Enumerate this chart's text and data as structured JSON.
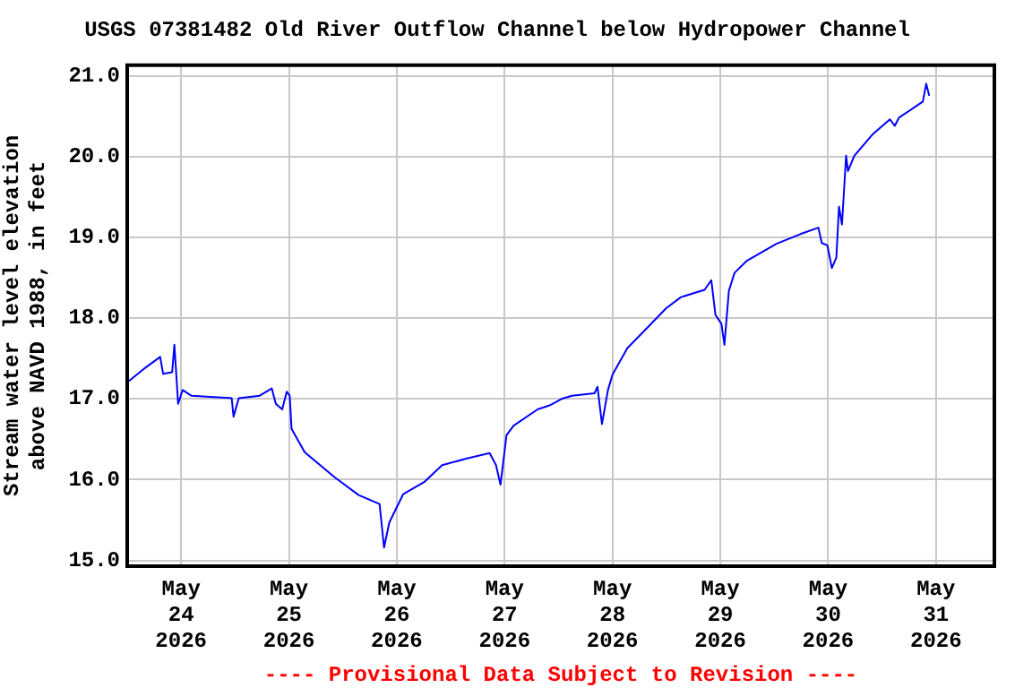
{
  "chart_data": {
    "type": "line",
    "title": "USGS 07381482 Old River Outflow Channel below Hydropower Channel",
    "ylabel": "Stream water level elevation above NAVD 1988, in feet",
    "annotations": [
      "---- Provisional Data Subject to Revision ----"
    ],
    "x": [
      "2026-05-23T12:20",
      "2026-05-23T15:40",
      "2026-05-23T19:20",
      "2026-05-23T20:00",
      "2026-05-23T22:00",
      "2026-05-23T22:30",
      "2026-05-23T23:20",
      "2026-05-24T00:20",
      "2026-05-24T02:15",
      "2026-05-24T11:15",
      "2026-05-24T11:40",
      "2026-05-24T12:50",
      "2026-05-24T17:30",
      "2026-05-24T20:10",
      "2026-05-24T21:05",
      "2026-05-24T22:30",
      "2026-05-24T23:30",
      "2026-05-25T00:10",
      "2026-05-25T00:35",
      "2026-05-25T03:30",
      "2026-05-25T10:10",
      "2026-05-25T15:30",
      "2026-05-25T20:10",
      "2026-05-25T21:10",
      "2026-05-25T22:20",
      "2026-05-26T01:25",
      "2026-05-26T06:05",
      "2026-05-26T10:05",
      "2026-05-26T15:25",
      "2026-05-26T20:40",
      "2026-05-26T22:05",
      "2026-05-26T23:05",
      "2026-05-27T00:25",
      "2026-05-27T02:00",
      "2026-05-27T07:20",
      "2026-05-27T10:00",
      "2026-05-27T12:40",
      "2026-05-27T15:00",
      "2026-05-27T20:00",
      "2026-05-27T20:40",
      "2026-05-27T21:40",
      "2026-05-27T23:00",
      "2026-05-28T00:00",
      "2026-05-28T03:20",
      "2026-05-28T07:55",
      "2026-05-28T11:55",
      "2026-05-28T15:15",
      "2026-05-28T20:30",
      "2026-05-28T22:00",
      "2026-05-28T22:55",
      "2026-05-29T00:15",
      "2026-05-29T00:55",
      "2026-05-29T01:55",
      "2026-05-29T03:10",
      "2026-05-29T05:55",
      "2026-05-29T12:30",
      "2026-05-29T17:50",
      "2026-05-29T21:50",
      "2026-05-29T22:35",
      "2026-05-29T23:50",
      "2026-05-30T00:50",
      "2026-05-30T01:50",
      "2026-05-30T02:25",
      "2026-05-30T03:05",
      "2026-05-30T04:00",
      "2026-05-30T04:25",
      "2026-05-30T05:50",
      "2026-05-30T09:50",
      "2026-05-30T13:45",
      "2026-05-30T14:50",
      "2026-05-30T15:45",
      "2026-05-30T21:05",
      "2026-05-30T21:50",
      "2026-05-30T22:30"
    ],
    "series": [
      {
        "color": "#0000ff",
        "values": [
          17.22,
          17.37,
          17.52,
          17.31,
          17.33,
          17.67,
          16.94,
          17.11,
          17.04,
          17.01,
          16.78,
          17.01,
          17.04,
          17.13,
          16.94,
          16.87,
          17.09,
          17.04,
          16.63,
          16.34,
          16.03,
          15.81,
          15.7,
          15.16,
          15.47,
          15.82,
          15.97,
          16.18,
          16.26,
          16.33,
          16.18,
          15.94,
          16.55,
          16.67,
          16.87,
          16.92,
          17.0,
          17.04,
          17.07,
          17.15,
          16.69,
          17.11,
          17.3,
          17.63,
          17.89,
          18.12,
          18.26,
          18.35,
          18.47,
          18.04,
          17.93,
          17.67,
          18.34,
          18.56,
          18.71,
          18.92,
          19.04,
          19.12,
          18.93,
          18.9,
          18.62,
          18.75,
          19.38,
          19.16,
          20.01,
          19.82,
          20.01,
          20.27,
          20.46,
          20.38,
          20.48,
          20.68,
          20.9,
          20.75
        ]
      }
    ],
    "xlim": [
      "2026-05-23T12:00",
      "2026-05-31T13:00"
    ],
    "xticks": [
      {
        "value": "2026-05-24",
        "label": "May 24 2026"
      },
      {
        "value": "2026-05-25",
        "label": "May 25 2026"
      },
      {
        "value": "2026-05-26",
        "label": "May 26 2026"
      },
      {
        "value": "2026-05-27",
        "label": "May 27 2026"
      },
      {
        "value": "2026-05-28",
        "label": "May 28 2026"
      },
      {
        "value": "2026-05-29",
        "label": "May 29 2026"
      },
      {
        "value": "2026-05-30",
        "label": "May 30 2026"
      },
      {
        "value": "2026-05-31",
        "label": "May 31 2026"
      }
    ],
    "ylim": [
      14.93,
      21.13
    ],
    "yticks": [
      {
        "value": 15,
        "label": "15.0"
      },
      {
        "value": 16,
        "label": "16.0"
      },
      {
        "value": 17,
        "label": "17.0"
      },
      {
        "value": 18,
        "label": "18.0"
      },
      {
        "value": 19,
        "label": "19.0"
      },
      {
        "value": 20,
        "label": "20.0"
      },
      {
        "value": 21,
        "label": "21.0"
      }
    ],
    "grid": true,
    "legend": false,
    "marker": "none",
    "line_style": "solid"
  }
}
